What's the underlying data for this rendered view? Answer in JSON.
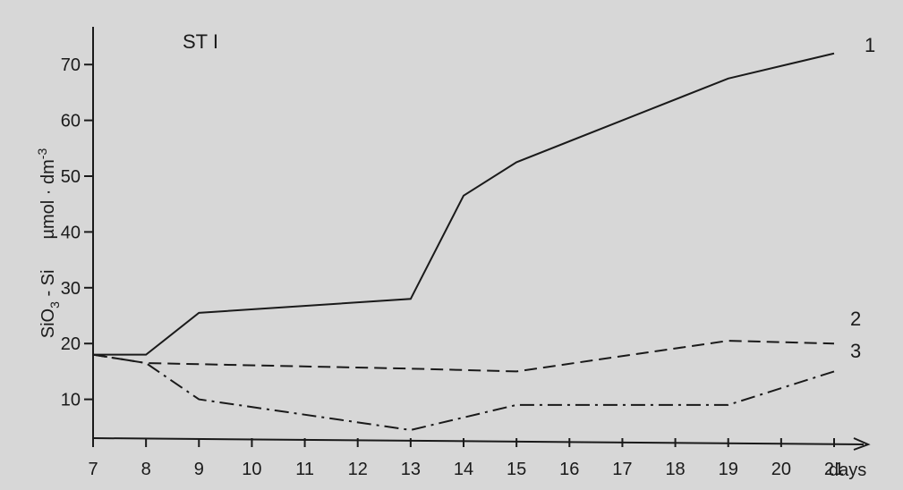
{
  "chart_data": {
    "type": "line",
    "title": "",
    "annotation": "ST I",
    "xlabel": "days",
    "ylabel": "SiO3 - Si µmol · dm-3",
    "ylim": [
      0,
      75
    ],
    "xlim": [
      7,
      21
    ],
    "x_ticks": [
      "7",
      "8",
      "9",
      "10",
      "11",
      "12",
      "13",
      "14",
      "15",
      "16",
      "17",
      "18",
      "19",
      "20",
      "21"
    ],
    "y_ticks": [
      "10",
      "20",
      "30",
      "40",
      "50",
      "60",
      "70"
    ],
    "grid": false,
    "series": [
      {
        "name": "1",
        "style": "solid",
        "x": [
          7,
          8,
          9,
          13,
          14,
          15,
          19,
          21
        ],
        "y": [
          18,
          18,
          25.5,
          28,
          46.5,
          52.5,
          67.5,
          72
        ]
      },
      {
        "name": "2",
        "style": "dashed",
        "x": [
          7,
          8,
          13,
          15,
          19,
          21
        ],
        "y": [
          18,
          16.5,
          15.5,
          15,
          20.5,
          20
        ]
      },
      {
        "name": "3",
        "style": "dash-dot",
        "x": [
          7,
          8,
          9,
          13,
          15,
          19,
          21
        ],
        "y": [
          18,
          16.5,
          10,
          4.5,
          9,
          9,
          15
        ]
      }
    ]
  }
}
